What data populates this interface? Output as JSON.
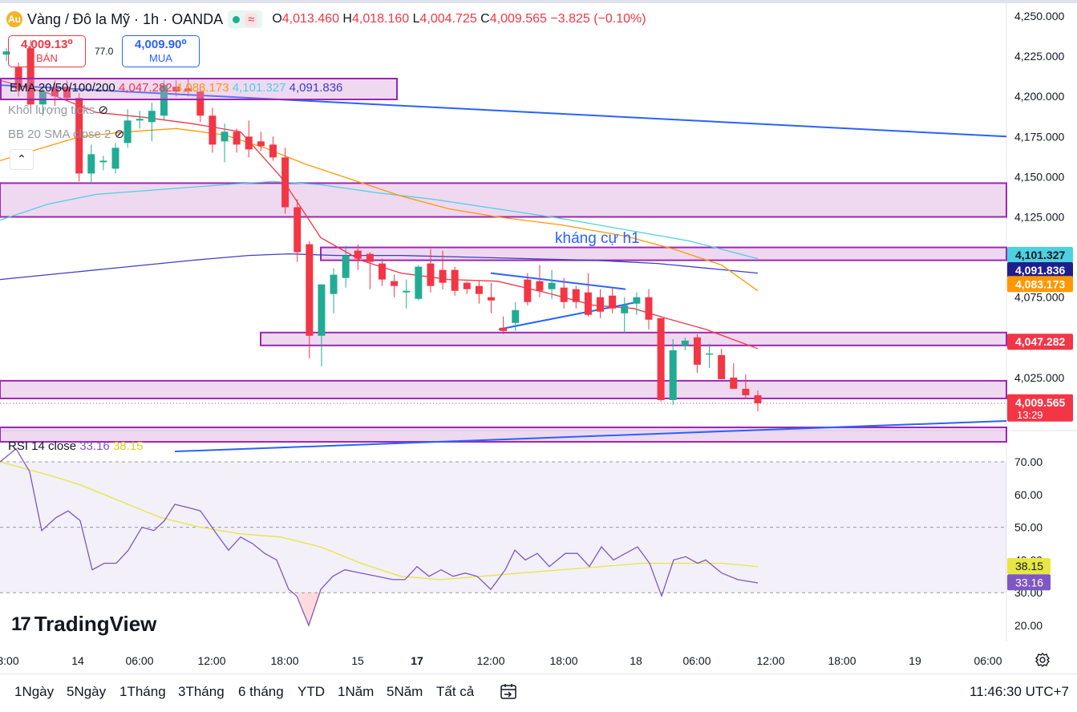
{
  "header": {
    "symbol": "Vàng / Đô la Mỹ · 1h · OANDA",
    "open_label": "O",
    "open": "4,013.460",
    "high_label": "H",
    "high": "4,018.160",
    "low_label": "L",
    "low": "4,004.725",
    "close_label": "C",
    "close": "4,009.565",
    "change": "−3.825 (−0.10%)",
    "wave_glyph": "≈"
  },
  "trade": {
    "sell_price": "4,009.13⁰",
    "sell_label": "BÁN",
    "spread": "77.0",
    "buy_price": "4,009.90⁰",
    "buy_label": "MUA"
  },
  "indicators": {
    "ema_label": "EMA 20/50/100/200",
    "ema20": "4,047.282",
    "ema50": "4,083.173",
    "ema100": "4,101.327",
    "ema200": "4,091.836",
    "volume_label": "Khối lượng ticks",
    "bb_label": "BB 20 SMA close 2",
    "collapse_glyph": "⌃"
  },
  "rsi": {
    "label": "RSI 14 close",
    "value": "33.16",
    "ma_value": "38.15"
  },
  "annotation": "kháng cự h1",
  "brand": {
    "mark": "17",
    "name": "TradingView"
  },
  "ranges": [
    "1Ngày",
    "5Ngày",
    "1Tháng",
    "3Tháng",
    "6 tháng",
    "YTD",
    "1Năm",
    "5Năm",
    "Tất cả"
  ],
  "clock": "11:46:30 UTC+7",
  "colors": {
    "up": "#22ab94",
    "down": "#f23645",
    "ema20": "#f23645",
    "ema50": "#ff9800",
    "ema100": "#4dd0e1",
    "ema200": "#3f3fc5",
    "zone": "#9c27b0",
    "trend": "#2962ff",
    "rsi": "#7e57c2",
    "rsi_ma": "#e6e645"
  },
  "chart_data": {
    "type": "candlestick",
    "x_ticks": [
      "3:00",
      "14",
      "06:00",
      "12:00",
      "18:00",
      "15",
      "17",
      "12:00",
      "18:00",
      "18",
      "06:00",
      "12:00",
      "18:00",
      "19",
      "06:00"
    ],
    "y_ticks": [
      "4,250.000",
      "4,225.000",
      "4,200.000",
      "4,175.000",
      "4,150.000",
      "4,125.000",
      "4,075.000",
      "4,050.000",
      "4,025.000"
    ],
    "ylim": [
      3994,
      4255
    ],
    "price_tags": [
      {
        "value": "4,101.327",
        "color": "#4dd0e1",
        "text_color": "#131722"
      },
      {
        "value": "4,091.836",
        "color": "#1e1e8c",
        "text_color": "#ffffff"
      },
      {
        "value": "4,083.173",
        "color": "#ff9800",
        "text_color": "#ffffff"
      },
      {
        "value": "4,047.282",
        "color": "#f23645",
        "text_color": "#ffffff"
      },
      {
        "value": "4,009.565",
        "color": "#f23645",
        "text_color": "#ffffff",
        "sub": "13:29"
      }
    ],
    "candles": [
      [
        4226,
        4230,
        4222,
        4228
      ],
      [
        4218,
        4221,
        4200,
        4204
      ],
      [
        4230,
        4235,
        4192,
        4195
      ],
      [
        4195,
        4205,
        4188,
        4203
      ],
      [
        4205,
        4210,
        4194,
        4200
      ],
      [
        4206,
        4210,
        4197,
        4199
      ],
      [
        4199,
        4202,
        4147,
        4152
      ],
      [
        4152,
        4170,
        4146,
        4164
      ],
      [
        4159,
        4163,
        4154,
        4160
      ],
      [
        4155,
        4171,
        4152,
        4168
      ],
      [
        4171,
        4192,
        4168,
        4185
      ],
      [
        4185,
        4191,
        4180,
        4186
      ],
      [
        4184,
        4196,
        4172,
        4191
      ],
      [
        4188,
        4210,
        4185,
        4207
      ],
      [
        4206,
        4210,
        4200,
        4203
      ],
      [
        4205,
        4211,
        4200,
        4203
      ],
      [
        4203,
        4207,
        4184,
        4188
      ],
      [
        4188,
        4193,
        4165,
        4170
      ],
      [
        4172,
        4183,
        4159,
        4178
      ],
      [
        4178,
        4180,
        4165,
        4170
      ],
      [
        4175,
        4185,
        4162,
        4167
      ],
      [
        4172,
        4178,
        4166,
        4169
      ],
      [
        4170,
        4175,
        4160,
        4162
      ],
      [
        4162,
        4168,
        4127,
        4131
      ],
      [
        4131,
        4136,
        4097,
        4103
      ],
      [
        4108,
        4110,
        4037,
        4051
      ],
      [
        4051,
        4083,
        4032,
        4083
      ],
      [
        4077,
        4093,
        4065,
        4089
      ],
      [
        4087,
        4107,
        4081,
        4101
      ],
      [
        4104,
        4108,
        4092,
        4099
      ],
      [
        4102,
        4103,
        4080,
        4097
      ],
      [
        4096,
        4099,
        4082,
        4086
      ],
      [
        4085,
        4089,
        4075,
        4082
      ],
      [
        4078,
        4086,
        4068,
        4079
      ],
      [
        4074,
        4095,
        4073,
        4094
      ],
      [
        4096,
        4105,
        4078,
        4082
      ],
      [
        4092,
        4104,
        4080,
        4084
      ],
      [
        4092,
        4094,
        4076,
        4079
      ],
      [
        4084,
        4085,
        4077,
        4080
      ],
      [
        4082,
        4085,
        4071,
        4077
      ],
      [
        4075,
        4084,
        4065,
        4073
      ],
      [
        4056,
        4063,
        4052,
        4054
      ],
      [
        4059,
        4072,
        4054,
        4067
      ],
      [
        4086,
        4090,
        4070,
        4072
      ],
      [
        4085,
        4095,
        4075,
        4079
      ],
      [
        4080,
        4092,
        4074,
        4084
      ],
      [
        4081,
        4087,
        4068,
        4072
      ],
      [
        4080,
        4082,
        4068,
        4072
      ],
      [
        4078,
        4090,
        4063,
        4064
      ],
      [
        4075,
        4080,
        4062,
        4066
      ],
      [
        4076,
        4081,
        4065,
        4068
      ],
      [
        4065,
        4075,
        4053,
        4070
      ],
      [
        4071,
        4078,
        4064,
        4075
      ],
      [
        4075,
        4080,
        4055,
        4061
      ],
      [
        4062,
        4062,
        4010,
        4011
      ],
      [
        4011,
        4049,
        4008,
        4042
      ],
      [
        4045,
        4050,
        4042,
        4048
      ],
      [
        4050,
        4052,
        4028,
        4033
      ],
      [
        4040,
        4046,
        4031,
        4040
      ],
      [
        4039,
        4043,
        4025,
        4024
      ],
      [
        4025,
        4034,
        4019,
        4018
      ],
      [
        4018,
        4027,
        4012,
        4014
      ],
      [
        4014,
        4017,
        4004,
        4009
      ]
    ],
    "ema20": [
      [
        0,
        4210
      ],
      [
        60,
        4202
      ],
      [
        120,
        4190
      ],
      [
        180,
        4187
      ],
      [
        240,
        4183
      ],
      [
        300,
        4178
      ],
      [
        350,
        4150
      ],
      [
        400,
        4112
      ],
      [
        450,
        4098
      ],
      [
        500,
        4090
      ],
      [
        560,
        4086
      ],
      [
        620,
        4085
      ],
      [
        680,
        4078
      ],
      [
        740,
        4070
      ],
      [
        790,
        4068
      ],
      [
        830,
        4062
      ],
      [
        880,
        4055
      ],
      [
        945,
        4043
      ]
    ],
    "ema50": [
      [
        0,
        4160
      ],
      [
        100,
        4175
      ],
      [
        160,
        4178
      ],
      [
        220,
        4180
      ],
      [
        280,
        4176
      ],
      [
        330,
        4168
      ],
      [
        380,
        4158
      ],
      [
        440,
        4148
      ],
      [
        500,
        4138
      ],
      [
        560,
        4130
      ],
      [
        620,
        4125
      ],
      [
        700,
        4120
      ],
      [
        780,
        4113
      ],
      [
        840,
        4105
      ],
      [
        900,
        4095
      ],
      [
        945,
        4079
      ]
    ],
    "ema100": [
      [
        0,
        4123
      ],
      [
        60,
        4133
      ],
      [
        120,
        4139
      ],
      [
        200,
        4142
      ],
      [
        280,
        4145
      ],
      [
        340,
        4147
      ],
      [
        400,
        4145
      ],
      [
        470,
        4140
      ],
      [
        540,
        4136
      ],
      [
        620,
        4130
      ],
      [
        700,
        4124
      ],
      [
        780,
        4117
      ],
      [
        860,
        4110
      ],
      [
        945,
        4099
      ]
    ],
    "ema200": [
      [
        0,
        4086
      ],
      [
        80,
        4090
      ],
      [
        160,
        4094
      ],
      [
        240,
        4098
      ],
      [
        310,
        4101
      ],
      [
        360,
        4102
      ],
      [
        420,
        4101
      ],
      [
        500,
        4101
      ],
      [
        580,
        4100
      ],
      [
        660,
        4099
      ],
      [
        740,
        4098
      ],
      [
        820,
        4096
      ],
      [
        945,
        4090
      ]
    ],
    "zones": [
      {
        "x1": 0,
        "x2": 1255,
        "top": 4146,
        "bottom": 4125
      },
      {
        "x1": 400,
        "x2": 1255,
        "top": 4106,
        "bottom": 4098
      },
      {
        "x1": 325,
        "x2": 1255,
        "top": 4053,
        "bottom": 4045
      },
      {
        "x1": 0,
        "x2": 1255,
        "top": 4023,
        "bottom": 4012
      },
      {
        "x1": 0,
        "x2": 1255,
        "top": 3994,
        "bottom": 3985
      }
    ],
    "trendlines": [
      {
        "x1": 0,
        "y1": 4207,
        "x2": 1255,
        "y2": 4175
      },
      {
        "x1": 218,
        "y1": 3979,
        "x2": 1255,
        "y2": 3998
      },
      {
        "x1": 612,
        "y1": 4090,
        "x2": 780,
        "y2": 4080
      },
      {
        "x1": 622,
        "y1": 4055,
        "x2": 795,
        "y2": 4072
      }
    ],
    "rsi": {
      "ylim": [
        15,
        75
      ],
      "levels": [
        70,
        50,
        30
      ],
      "y_ticks": [
        "70.00",
        "60.00",
        "50.00",
        "40.00",
        "30.00",
        "20.00"
      ],
      "rsi_values": [
        [
          0,
          70
        ],
        [
          20,
          74
        ],
        [
          37,
          67
        ],
        [
          52,
          49
        ],
        [
          70,
          53
        ],
        [
          85,
          55
        ],
        [
          100,
          52
        ],
        [
          115,
          37
        ],
        [
          130,
          39
        ],
        [
          145,
          39
        ],
        [
          160,
          43
        ],
        [
          177,
          50
        ],
        [
          192,
          49
        ],
        [
          205,
          52
        ],
        [
          218,
          57
        ],
        [
          235,
          56
        ],
        [
          250,
          55
        ],
        [
          270,
          48
        ],
        [
          285,
          43
        ],
        [
          300,
          47
        ],
        [
          315,
          45
        ],
        [
          330,
          42
        ],
        [
          345,
          40
        ],
        [
          360,
          31
        ],
        [
          370,
          29
        ],
        [
          385,
          20
        ],
        [
          400,
          31
        ],
        [
          415,
          35
        ],
        [
          430,
          37
        ],
        [
          450,
          36
        ],
        [
          470,
          35
        ],
        [
          490,
          34
        ],
        [
          505,
          34
        ],
        [
          520,
          38
        ],
        [
          535,
          35
        ],
        [
          550,
          37
        ],
        [
          565,
          35
        ],
        [
          580,
          36
        ],
        [
          595,
          35
        ],
        [
          612,
          31
        ],
        [
          630,
          37
        ],
        [
          642,
          43
        ],
        [
          655,
          40
        ],
        [
          670,
          42
        ],
        [
          685,
          38
        ],
        [
          705,
          42
        ],
        [
          720,
          42
        ],
        [
          735,
          38
        ],
        [
          750,
          44
        ],
        [
          765,
          40
        ],
        [
          780,
          42
        ],
        [
          795,
          44
        ],
        [
          810,
          39
        ],
        [
          825,
          29
        ],
        [
          840,
          40
        ],
        [
          855,
          41
        ],
        [
          870,
          39
        ],
        [
          880,
          40
        ],
        [
          900,
          36
        ],
        [
          920,
          34
        ],
        [
          945,
          33
        ]
      ],
      "ma_values": [
        [
          0,
          70
        ],
        [
          60,
          66
        ],
        [
          100,
          63
        ],
        [
          150,
          58
        ],
        [
          200,
          53
        ],
        [
          250,
          50
        ],
        [
          300,
          48
        ],
        [
          350,
          47
        ],
        [
          400,
          44
        ],
        [
          450,
          39
        ],
        [
          500,
          35
        ],
        [
          550,
          34
        ],
        [
          600,
          35
        ],
        [
          650,
          36
        ],
        [
          700,
          37
        ],
        [
          750,
          38
        ],
        [
          800,
          39
        ],
        [
          850,
          39
        ],
        [
          900,
          39
        ],
        [
          945,
          38
        ]
      ],
      "tags": [
        {
          "value": "38.15",
          "color": "#e6e645",
          "text_color": "#131722"
        },
        {
          "value": "33.16",
          "color": "#7e57c2",
          "text_color": "#ffffff"
        }
      ]
    }
  }
}
